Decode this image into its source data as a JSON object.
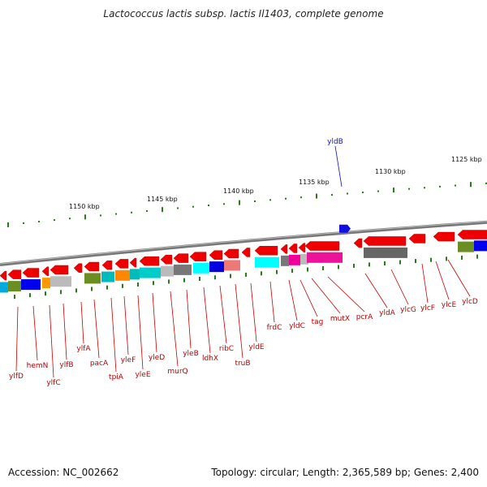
{
  "title": "Lactococcus lactis subsp. lactis Il1403, complete genome",
  "footer": {
    "accession": "Accession: NC_002662",
    "summary": "Topology: circular; Length: 2,365,589 bp; Genes: 2,400"
  },
  "scale_labels": [
    "1150 kbp",
    "1145 kbp",
    "1140 kbp",
    "1135 kbp",
    "1130 kbp",
    "1125 kbp"
  ],
  "top_gene": "yldB",
  "gene_labels": [
    "ylfD",
    "hemN",
    "ylfC",
    "ylfB",
    "ylfA",
    "pacA",
    "tpiA",
    "yleF",
    "yleE",
    "yleD",
    "murQ",
    "yleB",
    "ldhX",
    "ribC",
    "truB",
    "yldE",
    "frdC",
    "yldC",
    "tag",
    "mutX",
    "pcrA",
    "yldA",
    "ylcG",
    "ylcF",
    "ylcE",
    "ylcD"
  ],
  "colors": {
    "gene_forward": "#ee0000",
    "gene_blue": "#1010e0",
    "backbone": "#777777",
    "tick": "#2a7a1a"
  }
}
